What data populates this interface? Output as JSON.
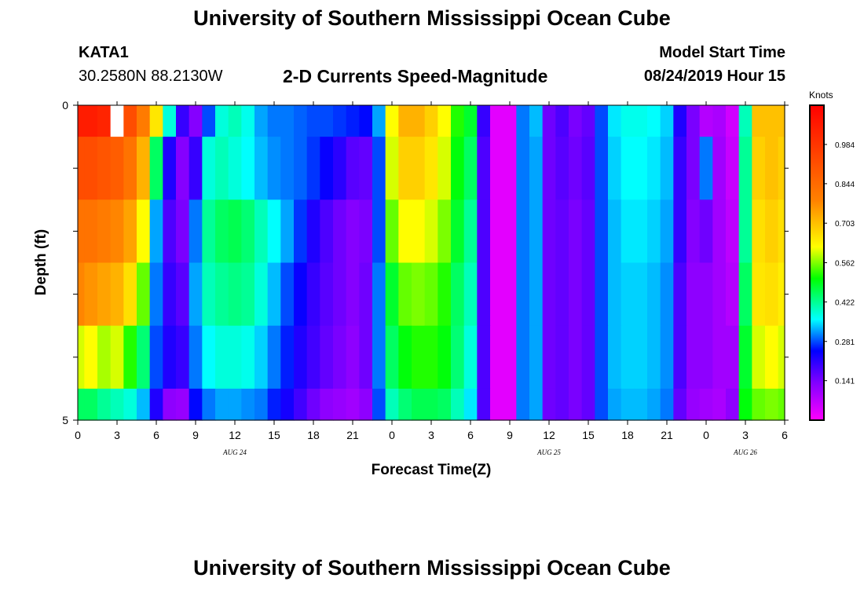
{
  "header": {
    "title": "University of Southern Mississippi Ocean Cube",
    "station": "KATA1",
    "coords": "30.2580N 88.2130W",
    "subtitle": "2-D Currents Speed-Magnitude",
    "model_start_label": "Model Start Time",
    "model_start_value": "08/24/2019 Hour 15"
  },
  "footer": {
    "title": "University of Southern Mississippi Ocean Cube"
  },
  "chart_data": {
    "type": "heatmap",
    "title": "2-D Currents Speed-Magnitude",
    "xlabel": "Forecast Time(Z)",
    "ylabel": "Depth (ft)",
    "colorbar_label": "Knots",
    "x_tick_labels": [
      "0",
      "3",
      "6",
      "9",
      "12",
      "15",
      "18",
      "21",
      "0",
      "3",
      "6",
      "9",
      "12",
      "15",
      "18",
      "21",
      "0",
      "3",
      "6"
    ],
    "x_range_hours": [
      0,
      54
    ],
    "date_labels": [
      {
        "label": "AUG  24",
        "hour": 12
      },
      {
        "label": "AUG  25",
        "hour": 36
      },
      {
        "label": "AUG  26",
        "hour": 51
      }
    ],
    "y_tick_labels": [
      {
        "label": "0",
        "depth": 0
      },
      {
        "label": "5",
        "depth": 5
      }
    ],
    "y_range_ft": [
      0,
      5
    ],
    "depth_levels": [
      {
        "top": 0,
        "bottom": 0.5
      },
      {
        "top": 0.5,
        "bottom": 1.5
      },
      {
        "top": 1.5,
        "bottom": 2.5
      },
      {
        "top": 2.5,
        "bottom": 3.5
      },
      {
        "top": 3.5,
        "bottom": 4.5
      },
      {
        "top": 4.5,
        "bottom": 5.0
      }
    ],
    "colorbar_ticks": [
      0.984,
      0.844,
      0.703,
      0.562,
      0.422,
      0.281,
      0.141
    ],
    "colorbar_tick_labels": [
      "0.984",
      "0.844",
      "0.703",
      "0.562",
      "0.422",
      "0.281",
      "0.141"
    ],
    "value_range": [
      0.0,
      1.124
    ],
    "hours": [
      0,
      1,
      2,
      3,
      4,
      5,
      6,
      7,
      8,
      9,
      10,
      11,
      12,
      13,
      14,
      15,
      16,
      17,
      18,
      19,
      20,
      21,
      22,
      23,
      24,
      25,
      26,
      27,
      28,
      29,
      30,
      31,
      32,
      33,
      34,
      35,
      36,
      37,
      38,
      39,
      40,
      41,
      42,
      43,
      44,
      45,
      46,
      47,
      48,
      49,
      50,
      51,
      52,
      53,
      54
    ],
    "speeds_knots": [
      [
        1.05,
        1.05,
        1.03,
        null,
        0.92,
        0.8,
        0.65,
        0.38,
        0.2,
        0.13,
        0.28,
        0.38,
        0.4,
        0.37,
        0.32,
        0.3,
        0.3,
        0.29,
        0.28,
        0.28,
        0.27,
        0.26,
        0.25,
        0.32,
        0.62,
        0.72,
        0.72,
        0.68,
        0.62,
        0.52,
        0.48,
        0.2,
        0.03,
        0.03,
        0.3,
        0.33,
        0.15,
        0.18,
        0.14,
        0.16,
        0.28,
        0.35,
        0.37,
        0.37,
        0.36,
        0.34,
        0.22,
        0.14,
        0.08,
        0.09,
        0.05,
        0.4,
        0.7,
        0.7,
        0.7
      ],
      [
        0.92,
        0.92,
        0.9,
        0.88,
        0.82,
        0.72,
        0.45,
        0.22,
        0.13,
        0.2,
        0.38,
        0.4,
        0.38,
        0.36,
        0.33,
        0.31,
        0.3,
        0.29,
        0.27,
        0.24,
        0.21,
        0.17,
        0.16,
        0.28,
        0.6,
        0.68,
        0.68,
        0.65,
        0.6,
        0.5,
        0.45,
        0.18,
        0.03,
        0.03,
        0.3,
        0.32,
        0.15,
        0.17,
        0.15,
        0.17,
        0.28,
        0.34,
        0.36,
        0.36,
        0.35,
        0.33,
        0.2,
        0.14,
        0.3,
        0.1,
        0.06,
        0.42,
        0.68,
        0.7,
        0.68
      ],
      [
        0.82,
        0.82,
        0.8,
        0.78,
        0.74,
        0.62,
        0.32,
        0.18,
        0.14,
        0.3,
        0.42,
        0.45,
        0.46,
        0.44,
        0.4,
        0.36,
        0.32,
        0.27,
        0.22,
        0.18,
        0.15,
        0.13,
        0.14,
        0.28,
        0.55,
        0.62,
        0.62,
        0.6,
        0.56,
        0.48,
        0.42,
        0.18,
        0.03,
        0.03,
        0.3,
        0.32,
        0.15,
        0.16,
        0.14,
        0.16,
        0.28,
        0.33,
        0.35,
        0.35,
        0.34,
        0.32,
        0.2,
        0.13,
        0.15,
        0.1,
        0.07,
        0.42,
        0.66,
        0.68,
        0.66
      ],
      [
        0.78,
        0.76,
        0.74,
        0.72,
        0.66,
        0.55,
        0.3,
        0.2,
        0.17,
        0.32,
        0.4,
        0.42,
        0.43,
        0.42,
        0.38,
        0.33,
        0.28,
        0.24,
        0.2,
        0.17,
        0.15,
        0.13,
        0.15,
        0.3,
        0.48,
        0.55,
        0.56,
        0.55,
        0.52,
        0.45,
        0.4,
        0.18,
        0.03,
        0.03,
        0.3,
        0.32,
        0.15,
        0.16,
        0.14,
        0.16,
        0.28,
        0.33,
        0.34,
        0.34,
        0.33,
        0.31,
        0.18,
        0.12,
        0.12,
        0.1,
        0.08,
        0.45,
        0.65,
        0.66,
        0.64
      ],
      [
        0.6,
        0.62,
        0.58,
        0.6,
        0.52,
        0.44,
        0.28,
        0.22,
        0.2,
        0.3,
        0.36,
        0.38,
        0.38,
        0.37,
        0.34,
        0.3,
        0.26,
        0.22,
        0.19,
        0.16,
        0.14,
        0.12,
        0.15,
        0.3,
        0.45,
        0.5,
        0.52,
        0.52,
        0.5,
        0.44,
        0.38,
        0.18,
        0.03,
        0.03,
        0.3,
        0.32,
        0.15,
        0.16,
        0.14,
        0.16,
        0.28,
        0.33,
        0.34,
        0.34,
        0.33,
        0.31,
        0.18,
        0.12,
        0.12,
        0.1,
        0.1,
        0.48,
        0.6,
        0.62,
        0.6
      ],
      [
        0.45,
        0.45,
        0.42,
        0.4,
        0.38,
        0.33,
        0.22,
        0.12,
        0.11,
        0.25,
        0.3,
        0.32,
        0.32,
        0.31,
        0.3,
        0.26,
        0.23,
        0.19,
        0.15,
        0.12,
        0.11,
        0.1,
        0.12,
        0.28,
        0.4,
        0.44,
        0.46,
        0.46,
        0.45,
        0.4,
        0.35,
        0.18,
        0.03,
        0.03,
        0.3,
        0.32,
        0.15,
        0.16,
        0.14,
        0.16,
        0.28,
        0.32,
        0.33,
        0.33,
        0.32,
        0.3,
        0.16,
        0.11,
        0.1,
        0.09,
        0.12,
        0.5,
        0.55,
        0.56,
        0.55
      ]
    ]
  }
}
